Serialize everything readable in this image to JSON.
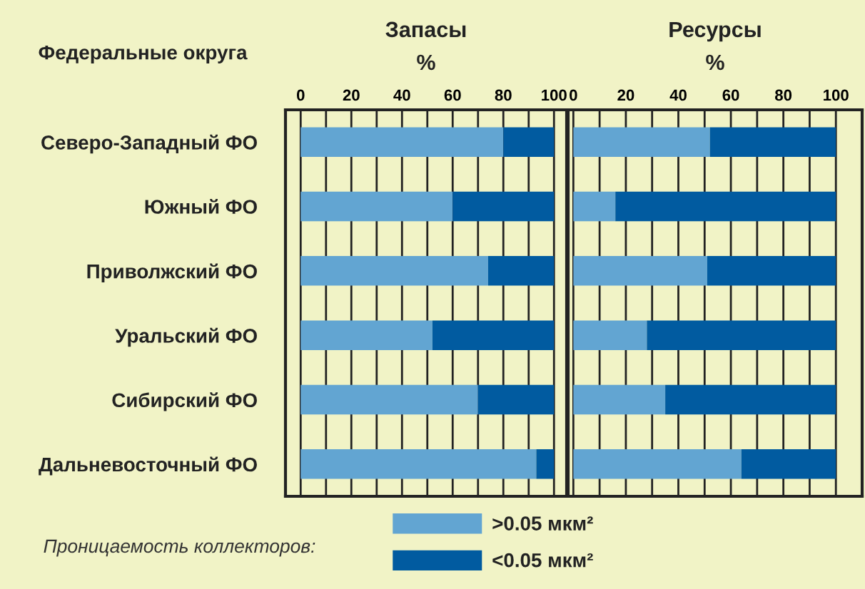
{
  "chart_data": [
    {
      "type": "bar",
      "orientation": "horizontal",
      "stacked": true,
      "title": "Запасы",
      "subtitle": "%",
      "ylabel": "Федеральные округа",
      "categories": [
        "Северо-Западный ФО",
        "Южный ФО",
        "Приволжский ФО",
        "Уральский ФО",
        "Сибирский ФО",
        "Дальневосточный ФО"
      ],
      "series": [
        {
          "name": ">0.05 мкм²",
          "color": "#62a5d2",
          "values": [
            80,
            60,
            74,
            52,
            70,
            93
          ]
        },
        {
          "name": "<0.05 мкм²",
          "color": "#015ba0",
          "values": [
            20,
            40,
            26,
            48,
            30,
            7
          ]
        }
      ],
      "xlim": [
        -6,
        105
      ],
      "xticks": [
        0,
        {
          "value": 10,
          "label": null
        },
        20,
        {
          "value": 30,
          "label": null
        },
        40,
        {
          "value": 50,
          "label": null
        },
        60,
        {
          "value": 70,
          "label": null
        },
        80,
        {
          "value": 90,
          "label": null
        },
        100
      ],
      "grid": "x",
      "legend": "bottom",
      "legend_title": "Проницаемость коллекторов:"
    },
    {
      "type": "bar",
      "orientation": "horizontal",
      "stacked": true,
      "title": "Ресурсы",
      "subtitle": "%",
      "categories": [
        null,
        null,
        null,
        null,
        null,
        null
      ],
      "series": [
        {
          "color": "#62a5d2",
          "values": [
            52,
            16,
            51,
            28,
            35,
            64
          ]
        },
        {
          "color": "#015ba0",
          "values": [
            48,
            84,
            49,
            72,
            65,
            36
          ]
        }
      ],
      "xlim": [
        -2,
        110
      ],
      "xticks": [
        0,
        {
          "value": 10,
          "label": null
        },
        20,
        {
          "value": 30,
          "label": null
        },
        40,
        {
          "value": 50,
          "label": null
        },
        60,
        {
          "value": 70,
          "label": null
        },
        80,
        {
          "value": 90,
          "label": null
        },
        100
      ],
      "grid": "x",
      "tick_labels": "x"
    }
  ]
}
